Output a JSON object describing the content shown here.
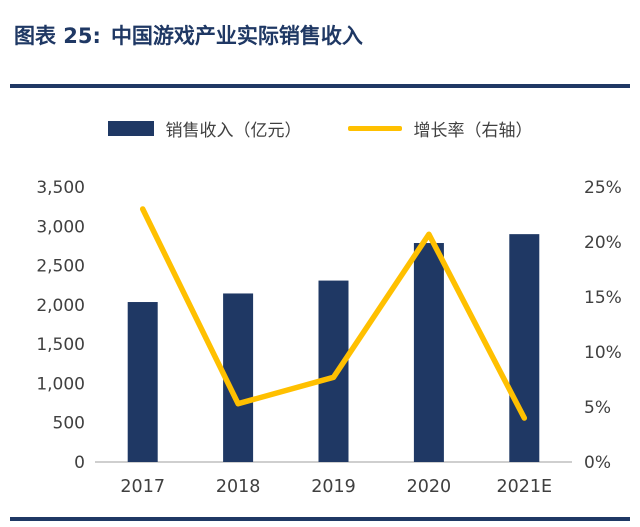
{
  "header": {
    "prefix": "图表 25:",
    "title": "中国游戏产业实际销售收入"
  },
  "legend": {
    "bar_label": "销售收入（亿元）",
    "line_label": "增长率（右轴）"
  },
  "colors": {
    "navy": "#1F3864",
    "yellow": "#FFC000",
    "axis_text": "#404040",
    "axis_line": "#BFBFBF"
  },
  "chart_data": {
    "type": "bar+line",
    "title": "中国游戏产业实际销售收入",
    "categories": [
      "2017",
      "2018",
      "2019",
      "2020",
      "2021E"
    ],
    "series": [
      {
        "name": "销售收入（亿元）",
        "type": "bar",
        "axis": "left",
        "values": [
          2036,
          2145,
          2309,
          2787,
          2900
        ]
      },
      {
        "name": "增长率（右轴）",
        "type": "line",
        "axis": "right",
        "values": [
          23.0,
          5.3,
          7.7,
          20.7,
          4.0
        ]
      }
    ],
    "left_axis": {
      "min": 0,
      "max": 3500,
      "tick_labels": [
        "0",
        "500",
        "1,000",
        "1,500",
        "2,000",
        "2,500",
        "3,000",
        "3,500"
      ]
    },
    "right_axis": {
      "min": 0,
      "max": 25,
      "tick_labels": [
        "0%",
        "5%",
        "10%",
        "15%",
        "20%",
        "25%"
      ]
    },
    "grid": false,
    "legend_position": "top"
  }
}
